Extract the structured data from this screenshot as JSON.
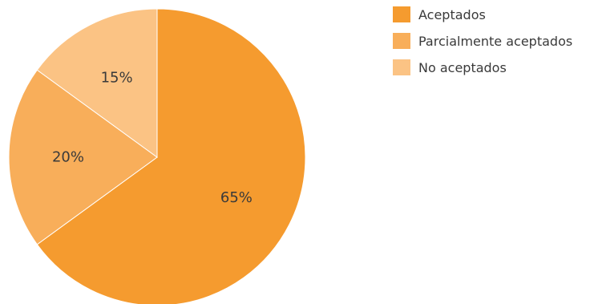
{
  "chart_data": {
    "type": "pie",
    "title": "",
    "categories": [
      "Aceptados",
      "Parcialmente aceptados",
      "No aceptados"
    ],
    "values": [
      65,
      20,
      15
    ],
    "value_labels": [
      "65%",
      "20%",
      "15%"
    ],
    "colors": [
      "#F59B2F",
      "#F8AE5A",
      "#FBC384"
    ],
    "legend": {
      "placement": "top-right",
      "entries": [
        "Aceptados",
        "Parcialmente aceptados",
        "No aceptados"
      ]
    }
  }
}
